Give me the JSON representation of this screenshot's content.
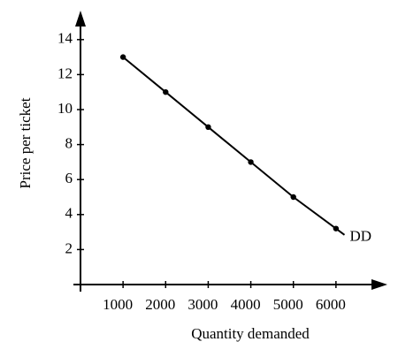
{
  "chart_data": {
    "type": "line",
    "x_label": "Quantity demanded",
    "y_label": "Price per ticket",
    "x": [
      1000,
      2000,
      3000,
      4000,
      5000,
      6000
    ],
    "series": [
      {
        "name": "DD",
        "color": "#000000",
        "values": [
          13,
          11,
          9,
          7,
          5,
          3.2
        ]
      }
    ],
    "xlim": [
      0,
      7000
    ],
    "ylim": [
      0,
      15
    ],
    "xticks": [
      1000,
      2000,
      3000,
      4000,
      5000,
      6000
    ],
    "yticks": [
      2,
      4,
      6,
      8,
      10,
      12,
      14
    ],
    "grid": false
  }
}
